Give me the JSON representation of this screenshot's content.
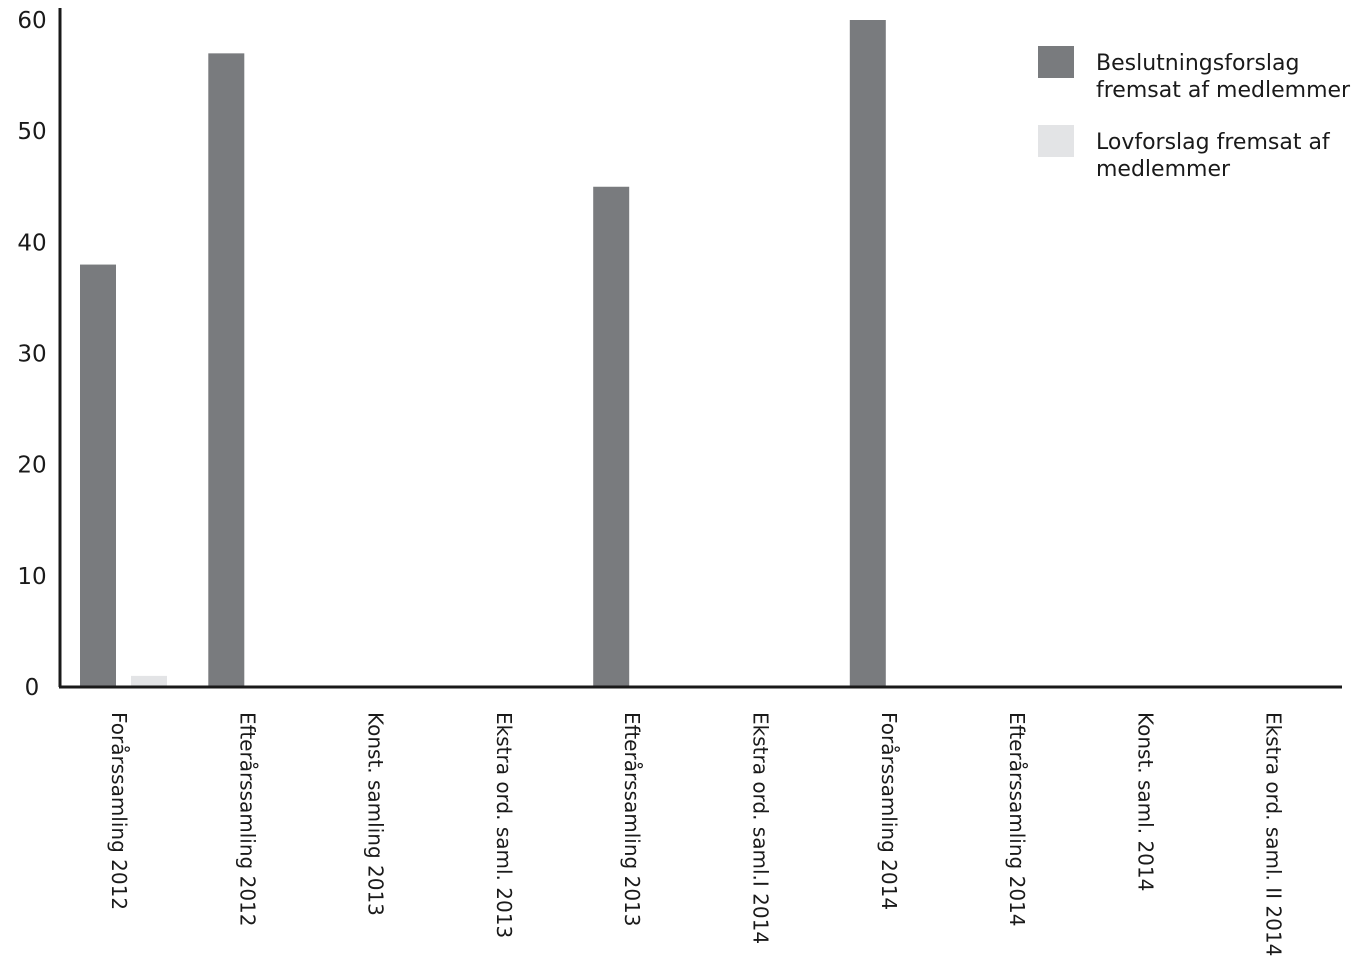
{
  "chart_data": {
    "type": "bar",
    "categories": [
      "Forårssamling 2012",
      "Efterårssamling 2012",
      "Konst. samling 2013",
      "Ekstra ord. saml. 2013",
      "Efterårssamling 2013",
      "Ekstra ord. saml.I 2014",
      "Forårssamling 2014",
      "Efterårssamling 2014",
      "Konst. saml. 2014",
      "Ekstra ord. saml. II 2014"
    ],
    "series": [
      {
        "name": "Beslutningsforslag fremsat af medlemmer",
        "legend_lines": [
          "Beslutningsforslag",
          "fremsat af medlemmer"
        ],
        "color": "#797b7e",
        "values": [
          38,
          57,
          0,
          0,
          45,
          0,
          60,
          0,
          0,
          0
        ]
      },
      {
        "name": "Lovforslag fremsat af medlemmer",
        "legend_lines": [
          "Lovforslag fremsat af",
          "medlemmer"
        ],
        "color": "#e3e4e6",
        "values": [
          1,
          0,
          0,
          0,
          0,
          0,
          0,
          0,
          0,
          0
        ]
      }
    ],
    "yticks": [
      0,
      10,
      20,
      30,
      40,
      50,
      60
    ],
    "ylim": [
      0,
      60
    ],
    "title": "",
    "xlabel": "",
    "ylabel": "",
    "legend": "top-right",
    "grid": false
  }
}
